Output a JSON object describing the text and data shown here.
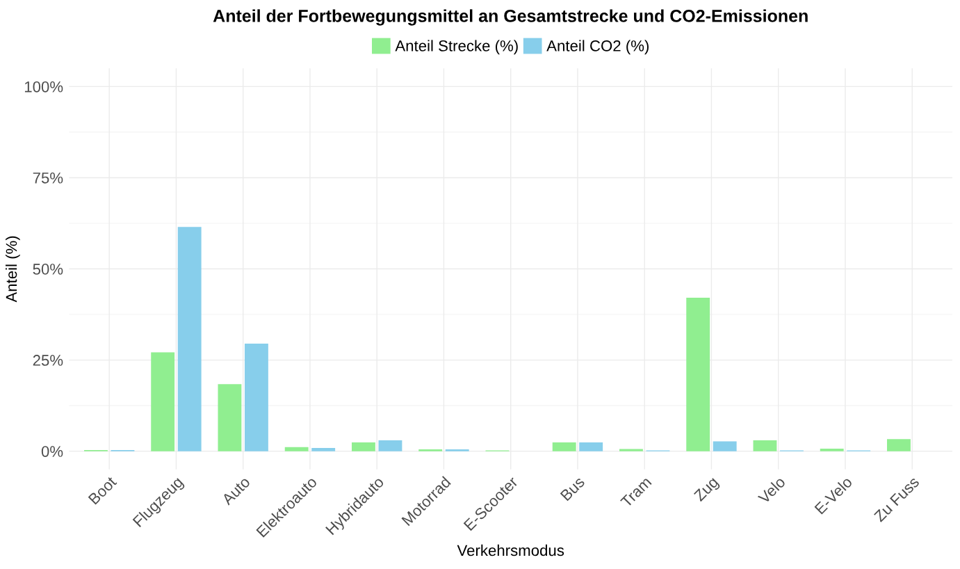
{
  "chart_data": {
    "type": "bar",
    "title": "Anteil der Fortbewegungsmittel an Gesamtstrecke und CO2-Emissionen",
    "xlabel": "Verkehrsmodus",
    "ylabel": "Anteil (%)",
    "categories": [
      "Boot",
      "Flugzeug",
      "Auto",
      "Elektroauto",
      "Hybridauto",
      "Motorrad",
      "E-Scooter",
      "Bus",
      "Tram",
      "Zug",
      "Velo",
      "E-Velo",
      "Zu Fuss"
    ],
    "series": [
      {
        "name": "Anteil Strecke (%)",
        "color": "#90ee90",
        "values": [
          0.3,
          27.1,
          18.4,
          1.1,
          2.4,
          0.5,
          0.2,
          2.4,
          0.6,
          42.1,
          3.0,
          0.7,
          3.3
        ]
      },
      {
        "name": "Anteil CO2 (%)",
        "color": "#87ceeb",
        "values": [
          0.3,
          61.5,
          29.5,
          0.9,
          3.0,
          0.5,
          0.0,
          2.4,
          0.2,
          2.7,
          0.2,
          0.2,
          0.0
        ]
      }
    ],
    "ylim": [
      -5,
      105
    ],
    "yticks": [
      {
        "value": 0,
        "label": "0%"
      },
      {
        "value": 25,
        "label": "25%"
      },
      {
        "value": 50,
        "label": "50%"
      },
      {
        "value": 75,
        "label": "75%"
      },
      {
        "value": 100,
        "label": "100%"
      }
    ],
    "grid": true,
    "legend": "top"
  }
}
